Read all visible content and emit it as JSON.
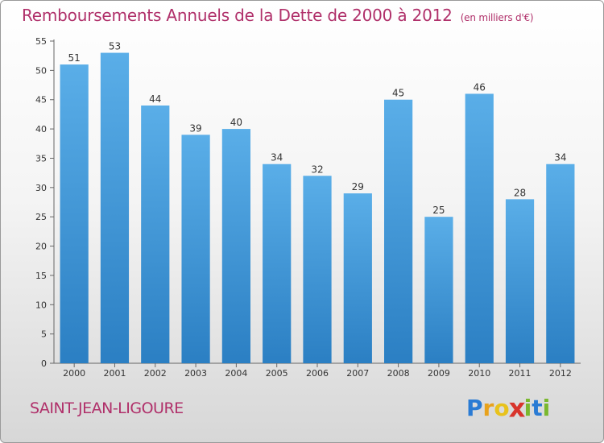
{
  "header": {
    "title": "Remboursements Annuels de la Dette de 2000 à 2012",
    "subtitle": "(en milliers d'€)"
  },
  "footer": {
    "commune": "SAINT-JEAN-LIGOURE",
    "logo_letters": [
      "P",
      "r",
      "o",
      "x",
      "i",
      "t",
      "i"
    ],
    "logo_colors": [
      "#2a7bd4",
      "#e8a21c",
      "#e8c21c",
      "#d8342c",
      "#7ab82e",
      "#2a7bd4",
      "#7ab82e"
    ]
  },
  "chart_data": {
    "type": "bar",
    "title": "Remboursements Annuels de la Dette de 2000 à 2012",
    "xlabel": "",
    "ylabel": "",
    "categories": [
      "2000",
      "2001",
      "2002",
      "2003",
      "2004",
      "2005",
      "2006",
      "2007",
      "2008",
      "2009",
      "2010",
      "2011",
      "2012"
    ],
    "values": [
      51,
      53,
      44,
      39,
      40,
      34,
      32,
      29,
      45,
      25,
      46,
      28,
      34
    ],
    "ylim": [
      0,
      55
    ],
    "yticks": [
      0,
      5,
      10,
      15,
      20,
      25,
      30,
      35,
      40,
      45,
      50,
      55
    ],
    "grid": false,
    "bar_color_top": "#5aaee8",
    "bar_color_bottom": "#2b7fc3"
  }
}
